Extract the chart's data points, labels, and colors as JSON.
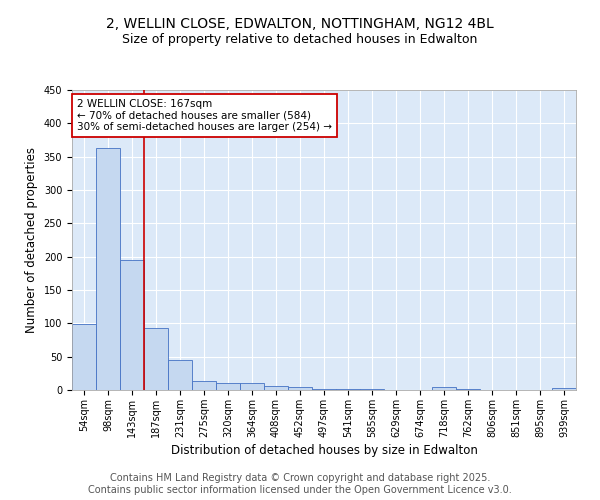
{
  "title": "2, WELLIN CLOSE, EDWALTON, NOTTINGHAM, NG12 4BL",
  "subtitle": "Size of property relative to detached houses in Edwalton",
  "xlabel": "Distribution of detached houses by size in Edwalton",
  "ylabel": "Number of detached properties",
  "categories": [
    "54sqm",
    "98sqm",
    "143sqm",
    "187sqm",
    "231sqm",
    "275sqm",
    "320sqm",
    "364sqm",
    "408sqm",
    "452sqm",
    "497sqm",
    "541sqm",
    "585sqm",
    "629sqm",
    "674sqm",
    "718sqm",
    "762sqm",
    "806sqm",
    "851sqm",
    "895sqm",
    "939sqm"
  ],
  "values": [
    99,
    363,
    195,
    93,
    45,
    13,
    10,
    10,
    6,
    4,
    2,
    1,
    1,
    0,
    0,
    5,
    2,
    0,
    0,
    0,
    3
  ],
  "bar_color": "#c5d8f0",
  "bar_edge_color": "#4472c4",
  "vline_x_index": 2,
  "vline_color": "#cc0000",
  "annotation_text": "2 WELLIN CLOSE: 167sqm\n← 70% of detached houses are smaller (584)\n30% of semi-detached houses are larger (254) →",
  "annotation_box_color": "#ffffff",
  "annotation_box_edge": "#cc0000",
  "ylim": [
    0,
    450
  ],
  "yticks": [
    0,
    50,
    100,
    150,
    200,
    250,
    300,
    350,
    400,
    450
  ],
  "bg_color": "#dce9f8",
  "grid_color": "#ffffff",
  "footer_line1": "Contains HM Land Registry data © Crown copyright and database right 2025.",
  "footer_line2": "Contains public sector information licensed under the Open Government Licence v3.0.",
  "title_fontsize": 10,
  "subtitle_fontsize": 9,
  "axis_label_fontsize": 8.5,
  "tick_fontsize": 7,
  "footer_fontsize": 7,
  "annot_fontsize": 7.5
}
